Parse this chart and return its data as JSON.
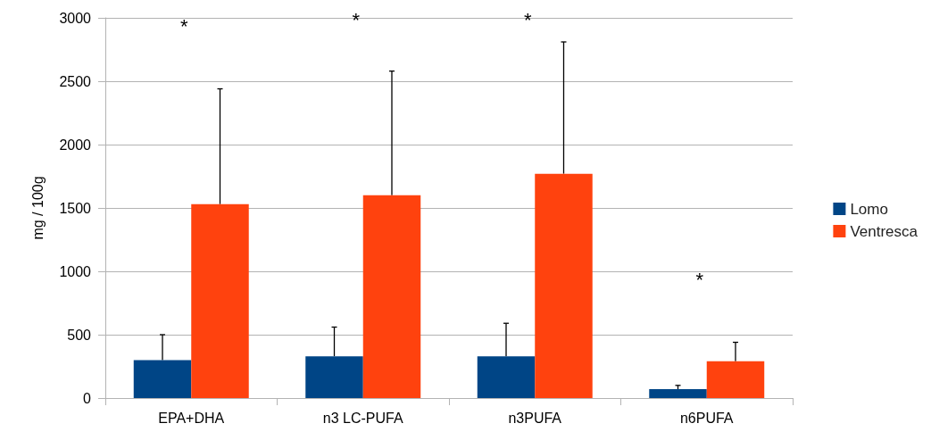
{
  "chart_data": {
    "type": "bar",
    "ylabel": "mg / 100g",
    "categories": [
      "EPA+DHA",
      "n3 LC-PUFA",
      "n3PUFA",
      "n6PUFA"
    ],
    "series": [
      {
        "name": "Lomo",
        "color": "#004586",
        "values": [
          300,
          330,
          330,
          70
        ],
        "errors": [
          [
            300,
            500
          ],
          [
            330,
            560
          ],
          [
            330,
            590
          ],
          [
            70,
            100
          ]
        ]
      },
      {
        "name": "Ventresca",
        "color": "#ff420e",
        "values": [
          1530,
          1600,
          1770,
          290
        ],
        "errors": [
          [
            1530,
            2440
          ],
          [
            1600,
            2580
          ],
          [
            1770,
            2810
          ],
          [
            290,
            440
          ]
        ]
      }
    ],
    "annotations": [
      "*",
      "*",
      "*",
      "*"
    ],
    "ylim": [
      0,
      3000
    ],
    "yticks": [
      0,
      500,
      1000,
      1500,
      2000,
      2500,
      3000
    ],
    "grid": "y",
    "legend": "right"
  }
}
